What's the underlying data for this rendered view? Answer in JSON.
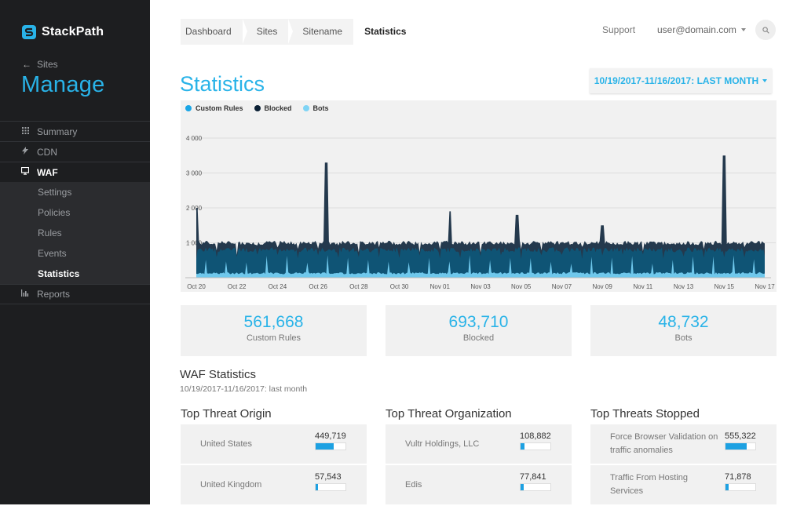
{
  "brand": {
    "name": "StackPath"
  },
  "sidebar": {
    "back_label": "Sites",
    "title": "Manage",
    "items": [
      {
        "label": "Summary",
        "icon": "grid-icon"
      },
      {
        "label": "CDN",
        "icon": "bolt-icon"
      },
      {
        "label": "WAF",
        "icon": "monitor-icon"
      },
      {
        "label": "Reports",
        "icon": "bar-chart-icon"
      }
    ],
    "waf_subitems": [
      "Settings",
      "Policies",
      "Rules",
      "Events",
      "Statistics"
    ]
  },
  "breadcrumb": [
    "Dashboard",
    "Sites",
    "Sitename",
    "Statistics"
  ],
  "header": {
    "support": "Support",
    "user": "user@domain.com"
  },
  "page": {
    "title": "Statistics",
    "date_range": "10/19/2017-11/16/2017: LAST MONTH"
  },
  "chart_data": {
    "type": "area",
    "legend": [
      {
        "name": "Custom Rules",
        "color": "#1aa6e6"
      },
      {
        "name": "Blocked",
        "color": "#0b2035"
      },
      {
        "name": "Bots",
        "color": "#7fd4f5"
      }
    ],
    "ylim": [
      0,
      4000
    ],
    "y_ticks": [
      "4 000",
      "3 000",
      "2 000",
      "1 000"
    ],
    "x_ticks": [
      "Oct 20",
      "Oct 22",
      "Oct 24",
      "Oct 26",
      "Oct 28",
      "Oct 30",
      "Nov 01",
      "Nov 03",
      "Nov 05",
      "Nov 07",
      "Nov 09",
      "Nov 11",
      "Nov 13",
      "Nov 15",
      "Nov 17"
    ],
    "series": [
      {
        "name": "Blocked",
        "baseline": 1000,
        "peaks": [
          {
            "day": 0.0,
            "value": 2000
          },
          {
            "day": 6.4,
            "value": 3300
          },
          {
            "day": 12.5,
            "value": 1900
          },
          {
            "day": 15.8,
            "value": 1800
          },
          {
            "day": 20.0,
            "value": 1500
          },
          {
            "day": 26.0,
            "value": 3500
          }
        ]
      },
      {
        "name": "Custom Rules",
        "baseline": 800
      },
      {
        "name": "Bots",
        "baseline": 100
      }
    ]
  },
  "totals": [
    {
      "value": "561,668",
      "label": "Custom Rules"
    },
    {
      "value": "693,710",
      "label": "Blocked"
    },
    {
      "value": "48,732",
      "label": "Bots"
    }
  ],
  "waf": {
    "title": "WAF Statistics",
    "subtitle": "10/19/2017-11/16/2017: last month",
    "panels": [
      {
        "title": "Top Threat Origin",
        "rows": [
          {
            "name": "United States",
            "value": "449,719",
            "fill": 0.6
          },
          {
            "name": "United Kingdom",
            "value": "57,543",
            "fill": 0.08
          }
        ]
      },
      {
        "title": "Top Threat Organization",
        "rows": [
          {
            "name": "Vultr Holdings, LLC",
            "value": "108,882",
            "fill": 0.14
          },
          {
            "name": "Edis",
            "value": "77,841",
            "fill": 0.1
          }
        ]
      },
      {
        "title": "Top Threats Stopped",
        "rows": [
          {
            "name": "Force Browser Validation on traffic anomalies",
            "value": "555,322",
            "fill": 0.72
          },
          {
            "name": "Traffic From Hosting Services",
            "value": "71,878",
            "fill": 0.1
          }
        ]
      }
    ]
  }
}
